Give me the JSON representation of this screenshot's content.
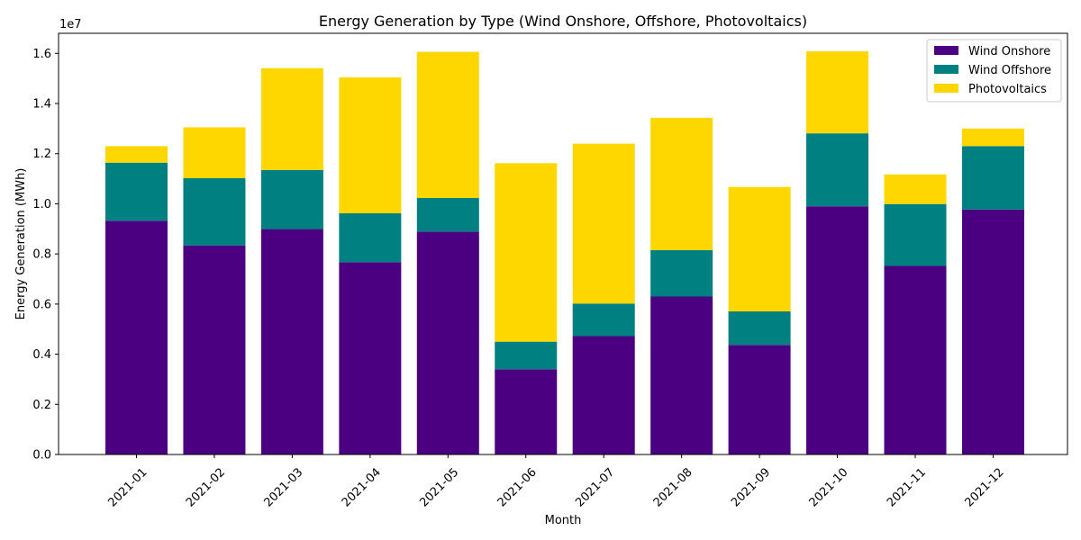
{
  "chart_data": {
    "type": "bar",
    "stacked": true,
    "title": "Energy Generation by Type (Wind Onshore, Offshore, Photovoltaics)",
    "xlabel": "Month",
    "ylabel": "Energy Generation (MWh)",
    "y_offset_label": "1e7",
    "ylim": [
      0,
      1.68
    ],
    "y_scale_multiplier": 10000000,
    "y_ticks": [
      "0.0",
      "0.2",
      "0.4",
      "0.6",
      "0.8",
      "1.0",
      "1.2",
      "1.4",
      "1.6"
    ],
    "legend_position": "top-right",
    "grid": false,
    "categories": [
      "2021-01",
      "2021-02",
      "2021-03",
      "2021-04",
      "2021-05",
      "2021-06",
      "2021-07",
      "2021-08",
      "2021-09",
      "2021-10",
      "2021-11",
      "2021-12"
    ],
    "series": [
      {
        "name": "Wind Onshore",
        "color": "#4b0082",
        "values": [
          0.932,
          0.834,
          0.899,
          0.767,
          0.889,
          0.34,
          0.472,
          0.63,
          0.437,
          0.99,
          0.752,
          0.977
        ]
      },
      {
        "name": "Wind Offshore",
        "color": "#008080",
        "values": [
          0.232,
          0.268,
          0.236,
          0.195,
          0.134,
          0.11,
          0.13,
          0.185,
          0.134,
          0.291,
          0.247,
          0.253
        ]
      },
      {
        "name": "Photovoltaics",
        "color": "#ffd700",
        "values": [
          0.066,
          0.203,
          0.406,
          0.542,
          0.583,
          0.712,
          0.638,
          0.528,
          0.496,
          0.327,
          0.118,
          0.07
        ]
      }
    ]
  }
}
